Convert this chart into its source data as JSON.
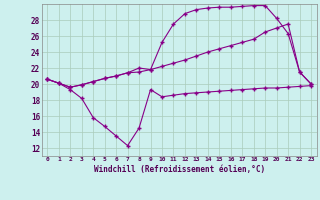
{
  "background_color": "#cdf0ee",
  "grid_color": "#aaccbb",
  "line_color": "#880088",
  "xlim": [
    -0.5,
    23.5
  ],
  "ylim": [
    11,
    30
  ],
  "xticks": [
    0,
    1,
    2,
    3,
    4,
    5,
    6,
    7,
    8,
    9,
    10,
    11,
    12,
    13,
    14,
    15,
    16,
    17,
    18,
    19,
    20,
    21,
    22,
    23
  ],
  "ytick_vals": [
    12,
    14,
    16,
    18,
    20,
    22,
    24,
    26,
    28
  ],
  "xlabel": "Windchill (Refroidissement éolien,°C)",
  "line1_x": [
    0,
    1,
    2,
    3,
    4,
    5,
    6,
    7,
    8,
    9,
    10,
    11,
    12,
    13,
    14,
    15,
    16,
    17,
    18,
    19,
    20,
    21,
    22,
    23
  ],
  "line1_y": [
    20.6,
    20.1,
    19.3,
    18.2,
    15.8,
    14.7,
    13.5,
    12.3,
    14.5,
    19.3,
    18.4,
    18.6,
    18.8,
    18.9,
    19.0,
    19.1,
    19.2,
    19.3,
    19.4,
    19.5,
    19.5,
    19.6,
    19.7,
    19.8
  ],
  "line2_x": [
    0,
    1,
    2,
    3,
    4,
    5,
    6,
    7,
    8,
    9,
    10,
    11,
    12,
    13,
    14,
    15,
    16,
    17,
    18,
    19,
    20,
    21,
    22,
    23
  ],
  "line2_y": [
    20.6,
    20.1,
    19.6,
    19.9,
    20.3,
    20.7,
    21.0,
    21.4,
    21.5,
    21.8,
    22.2,
    22.6,
    23.0,
    23.5,
    24.0,
    24.4,
    24.8,
    25.2,
    25.6,
    26.5,
    27.0,
    27.5,
    21.5,
    20.0
  ],
  "line3_x": [
    0,
    1,
    2,
    3,
    4,
    5,
    6,
    7,
    8,
    9,
    10,
    11,
    12,
    13,
    14,
    15,
    16,
    17,
    18,
    19,
    20,
    21,
    22,
    23
  ],
  "line3_y": [
    20.6,
    20.1,
    19.6,
    19.9,
    20.3,
    20.7,
    21.0,
    21.4,
    22.0,
    21.8,
    25.2,
    27.5,
    28.8,
    29.3,
    29.5,
    29.6,
    29.6,
    29.7,
    29.8,
    29.8,
    28.2,
    26.3,
    21.5,
    20.0
  ]
}
